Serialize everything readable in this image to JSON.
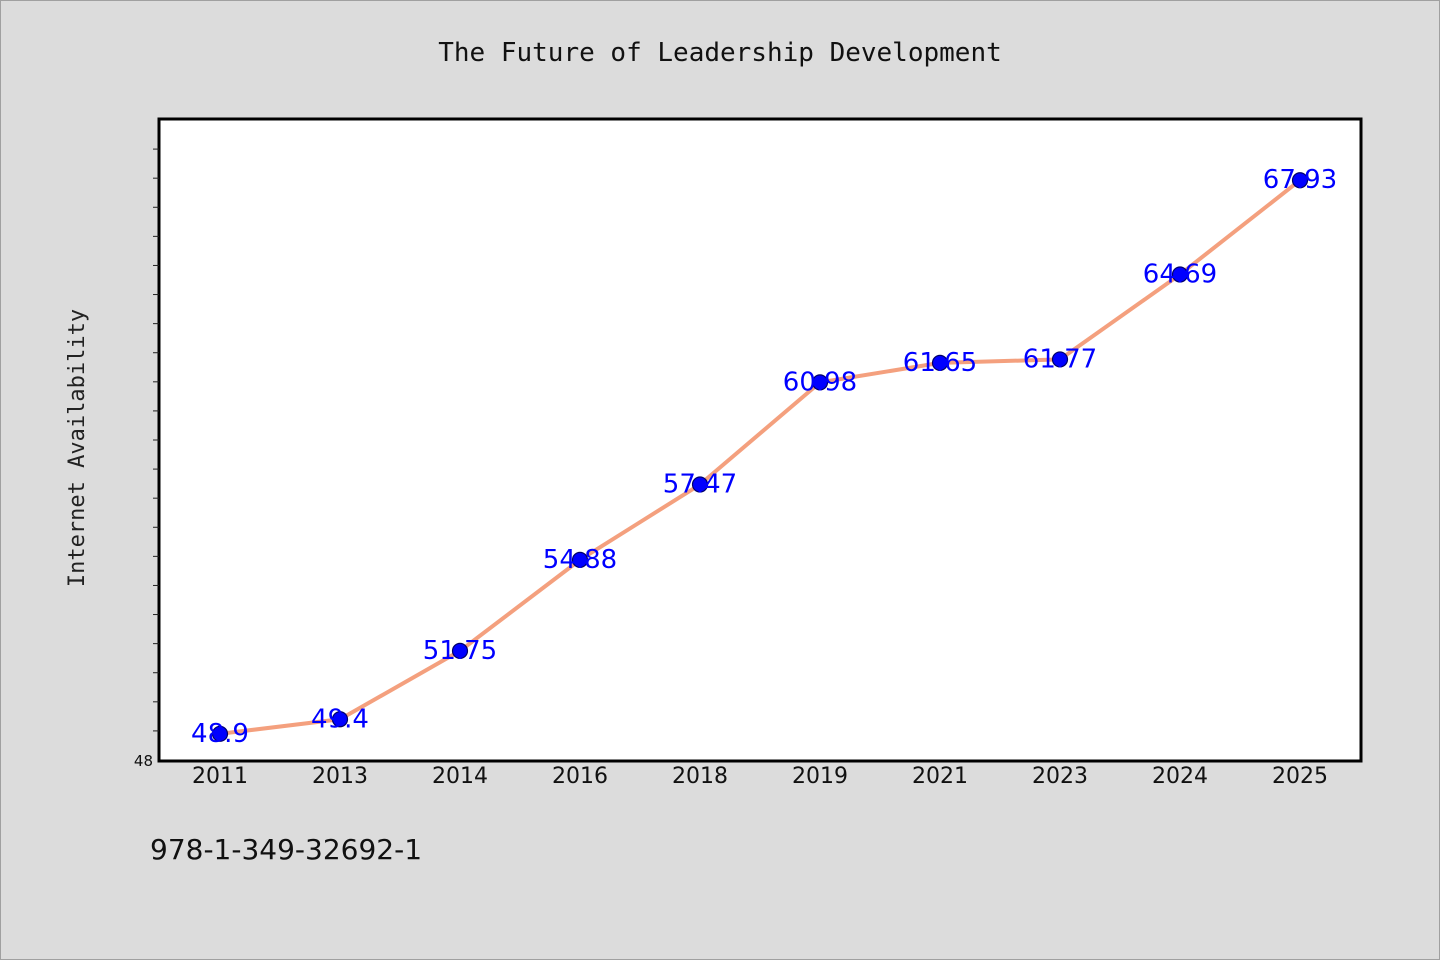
{
  "chart_data": {
    "type": "line",
    "title": "The Future of Leadership Development",
    "xlabel": "",
    "ylabel": "Internet Availability",
    "categories": [
      "2011",
      "2013",
      "2014",
      "2016",
      "2018",
      "2019",
      "2021",
      "2023",
      "2024",
      "2025"
    ],
    "values": [
      48.9,
      49.4,
      51.75,
      54.88,
      57.47,
      60.98,
      61.65,
      61.77,
      64.69,
      67.93
    ],
    "data_labels": [
      "48.9",
      "49.4",
      "51.75",
      "54.88",
      "57.47",
      "60.98",
      "61.65",
      "61.77",
      "64.69",
      "67.93"
    ],
    "ylim": [
      48,
      70
    ],
    "y_tick_labels": [
      "48"
    ],
    "line_color": "#f4a07e",
    "marker_color": "#0000ff",
    "label_color": "#0000ff",
    "grid": false,
    "legend": "none"
  },
  "footnote": "978-1-349-32692-1"
}
